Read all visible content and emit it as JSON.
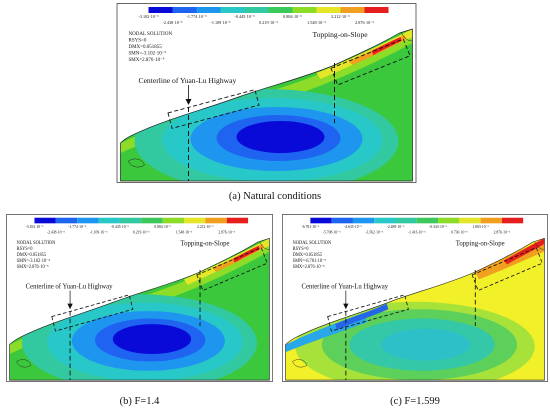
{
  "panels": {
    "a": {
      "caption": "(a) Natural conditions",
      "legend_top": [
        "-3.102·10⁻⁵",
        "-1.774·10⁻⁵",
        "-0.445·10⁻⁵",
        "0.884·10⁻⁵",
        "2.212·10⁻⁵"
      ],
      "legend_bottom": [
        "-2.438·10⁻⁵",
        "-1.109·10⁻⁵",
        "0.219·10⁻⁵",
        "1.548·10⁻⁵",
        "2.876·10⁻⁵"
      ],
      "info": [
        "NODAL SOLUTION",
        "RSYS=0",
        "DMX=0.051855",
        "SMN=-3.102·10⁻⁵",
        "SMX=2.876·10⁻⁵"
      ],
      "label_highway": "Centerline of Yuan-Lu Highway",
      "label_slope": "Topping-on-Slope"
    },
    "b": {
      "caption": "(b) F=1.4",
      "legend_top": [
        "-3.102·10⁻⁵",
        "-1.774·10⁻⁵",
        "-0.445·10⁻⁵",
        "0.884·10⁻⁵",
        "2.212·10⁻⁵"
      ],
      "legend_bottom": [
        "-2.438·10⁻⁵",
        "-1.109·10⁻⁵",
        "0.219·10⁻⁵",
        "1.548·10⁻⁵",
        "2.876·10⁻⁵"
      ],
      "info": [
        "NODAL SOLUTION",
        "RSYS=0",
        "DMX=0.051855",
        "SMN=-3.102·10⁻⁵",
        "SMX=2.876·10⁻⁵"
      ],
      "label_highway": "Centerline of Yuan-Lu Highway",
      "label_slope": "Topping-on-Slope"
    },
    "c": {
      "caption": "(c) F=1.599",
      "legend_top": [
        "-6.781·10⁻⁵",
        "-4.635·10⁻⁵",
        "-2.489·10⁻⁵",
        "-0.343·10⁻⁵",
        "1.803·10⁻⁵"
      ],
      "legend_bottom": [
        "-5.708·10⁻⁵",
        "-3.562·10⁻⁵",
        "-1.416·10⁻⁵",
        "0.730·10⁻⁵",
        "2.876·10⁻⁵"
      ],
      "info": [
        "NODAL SOLUTION",
        "RSYS=0",
        "DMX=0.051855",
        "SMN=-6.781·10⁻⁵",
        "SMX=2.876·10⁻⁵"
      ],
      "label_highway": "Centerline of Yuan-Lu Highway",
      "label_slope": "Topping-on-Slope"
    }
  },
  "colors": {
    "scale": [
      "#0a0ad8",
      "#1e64f0",
      "#1e96f0",
      "#28c8c8",
      "#32c8a0",
      "#3cc85a",
      "#8cdc28",
      "#e6e628",
      "#f0a01e",
      "#e61e1e"
    ]
  }
}
